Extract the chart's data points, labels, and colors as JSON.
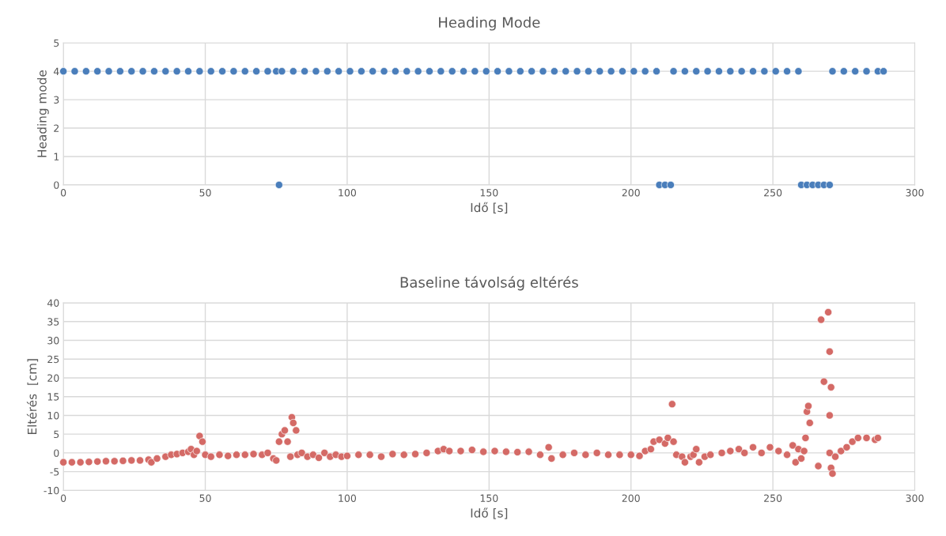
{
  "chart_data": [
    {
      "type": "scatter",
      "title": "Heading Mode",
      "xlabel": "Idő [s]",
      "ylabel": "Heading mode",
      "xlim": [
        0,
        300
      ],
      "xticks": [
        0,
        50,
        100,
        150,
        200,
        250,
        300
      ],
      "ylim": [
        0,
        5
      ],
      "yticks": [
        0,
        1,
        2,
        3,
        4,
        5
      ],
      "grid": true,
      "marker": "circle",
      "series": [
        {
          "color": "#4a7ebb",
          "x": [
            0,
            4,
            8,
            12,
            16,
            20,
            24,
            28,
            32,
            36,
            40,
            44,
            48,
            52,
            56,
            60,
            64,
            68,
            72,
            75,
            76,
            77,
            81,
            85,
            89,
            93,
            97,
            101,
            105,
            109,
            113,
            117,
            121,
            125,
            129,
            133,
            137,
            141,
            145,
            149,
            153,
            157,
            161,
            165,
            169,
            173,
            177,
            181,
            185,
            189,
            193,
            197,
            201,
            205,
            209,
            210,
            212,
            214,
            215,
            219,
            223,
            227,
            231,
            235,
            239,
            243,
            247,
            251,
            255,
            259,
            260,
            262,
            264,
            266,
            268,
            270,
            271,
            275,
            279,
            283,
            287,
            289
          ],
          "values": [
            4,
            4,
            4,
            4,
            4,
            4,
            4,
            4,
            4,
            4,
            4,
            4,
            4,
            4,
            4,
            4,
            4,
            4,
            4,
            4,
            0,
            4,
            4,
            4,
            4,
            4,
            4,
            4,
            4,
            4,
            4,
            4,
            4,
            4,
            4,
            4,
            4,
            4,
            4,
            4,
            4,
            4,
            4,
            4,
            4,
            4,
            4,
            4,
            4,
            4,
            4,
            4,
            4,
            4,
            4,
            0,
            0,
            0,
            4,
            4,
            4,
            4,
            4,
            4,
            4,
            4,
            4,
            4,
            4,
            4,
            0,
            0,
            0,
            0,
            0,
            0,
            4,
            4,
            4,
            4,
            4,
            4
          ]
        }
      ]
    },
    {
      "type": "scatter",
      "title": "Baseline távolság eltérés",
      "xlabel": "Idő [s]",
      "ylabel": "Eltérés  [cm]",
      "xlim": [
        0,
        300
      ],
      "xticks": [
        0,
        50,
        100,
        150,
        200,
        250,
        300
      ],
      "ylim": [
        -10,
        40
      ],
      "yticks": [
        -10,
        -5,
        0,
        5,
        10,
        15,
        20,
        25,
        30,
        35,
        40
      ],
      "grid": true,
      "marker": "circle",
      "series": [
        {
          "color": "#d46a66",
          "x": [
            0,
            3,
            6,
            9,
            12,
            15,
            18,
            21,
            24,
            27,
            30,
            31,
            33,
            36,
            38,
            40,
            42,
            44,
            45,
            46,
            47,
            48,
            49,
            50,
            52,
            55,
            58,
            61,
            64,
            67,
            70,
            72,
            74,
            75,
            76,
            77,
            78,
            79,
            80,
            80.5,
            81,
            82,
            82.5,
            84,
            86,
            88,
            90,
            92,
            94,
            96,
            98,
            100,
            104,
            108,
            112,
            116,
            120,
            124,
            128,
            132,
            134,
            136,
            140,
            144,
            148,
            152,
            156,
            160,
            164,
            168,
            171,
            172,
            176,
            180,
            184,
            188,
            192,
            196,
            200,
            203,
            205,
            207,
            208,
            210,
            212,
            213,
            214.5,
            215,
            216,
            218,
            219,
            221,
            222,
            223,
            224,
            226,
            228,
            232,
            235,
            238,
            240,
            243,
            246,
            249,
            252,
            255,
            257,
            258,
            259,
            260,
            261,
            261.5,
            262,
            262.5,
            263,
            266,
            267,
            268,
            269.5,
            270,
            270.5,
            270,
            270,
            270.5,
            271,
            272,
            274,
            276,
            278,
            280,
            283,
            286,
            287
          ],
          "values": [
            -2.5,
            -2.5,
            -2.5,
            -2.4,
            -2.3,
            -2.2,
            -2.2,
            -2.1,
            -2,
            -2,
            -1.8,
            -2.5,
            -1.5,
            -1,
            -0.5,
            -0.3,
            0,
            0.3,
            1,
            -0.5,
            0.5,
            4.5,
            3,
            -0.5,
            -1,
            -0.5,
            -0.8,
            -0.5,
            -0.5,
            -0.3,
            -0.5,
            0,
            -1.5,
            -2,
            3,
            5,
            6,
            3,
            -1,
            9.5,
            8,
            6,
            -0.5,
            0,
            -1,
            -0.5,
            -1.3,
            0,
            -1,
            -0.5,
            -1,
            -0.8,
            -0.5,
            -0.5,
            -1,
            -0.3,
            -0.5,
            -0.3,
            0,
            0.5,
            1,
            0.5,
            0.5,
            0.8,
            0.3,
            0.5,
            0.3,
            0.2,
            0.3,
            -0.5,
            1.5,
            -1.5,
            -0.5,
            0,
            -0.5,
            0,
            -0.5,
            -0.5,
            -0.5,
            -0.8,
            0.5,
            1,
            3,
            3.5,
            2.5,
            4,
            13,
            3,
            -0.5,
            -1,
            -2.5,
            -1,
            -0.5,
            1,
            -2.5,
            -1,
            -0.5,
            0,
            0.5,
            1,
            0,
            1.5,
            0,
            1.5,
            0.5,
            -0.5,
            2,
            -2.5,
            1,
            -1.5,
            0.5,
            4,
            11,
            12.5,
            8,
            -3.5,
            35.5,
            19,
            37.5,
            27,
            17.5,
            10,
            0,
            -4,
            -5.5,
            -1,
            0.5,
            1.5,
            3,
            4,
            4,
            3.5,
            4
          ]
        }
      ]
    }
  ]
}
